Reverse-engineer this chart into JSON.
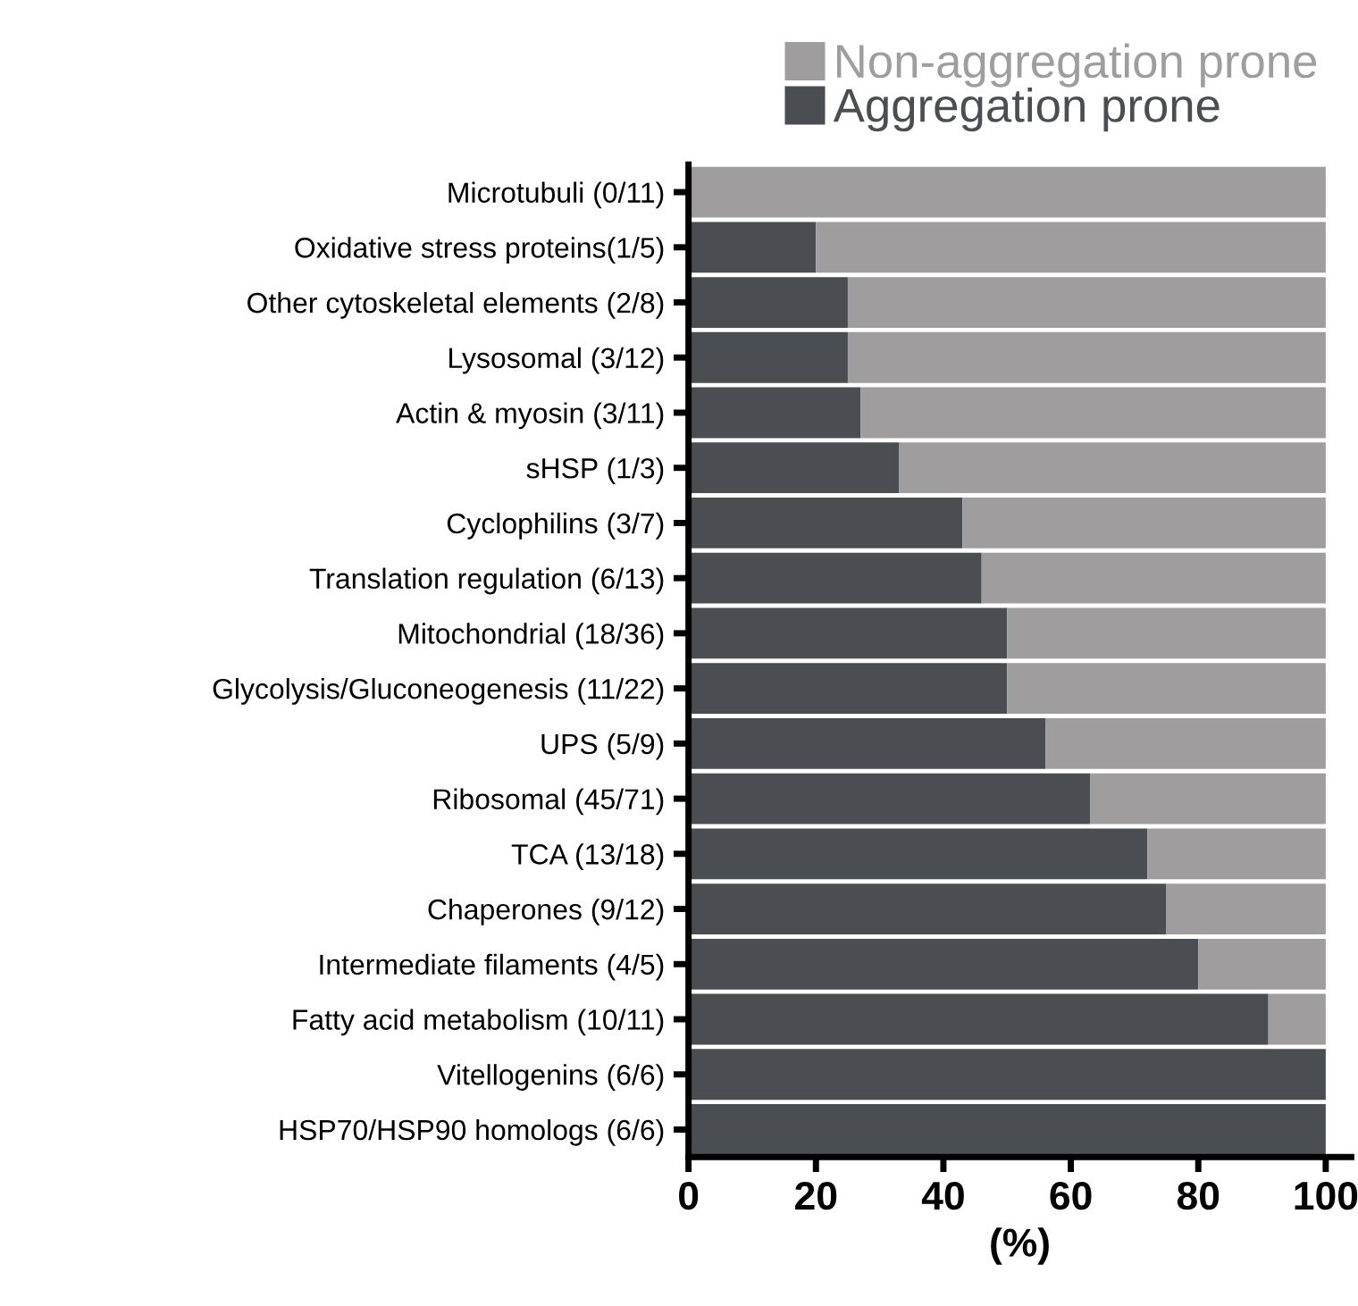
{
  "chart_data": {
    "type": "bar",
    "orientation": "horizontal",
    "stacked": true,
    "categories": [
      "Microtubuli (0/11)",
      "Oxidative stress proteins(1/5)",
      "Other cytoskeletal elements (2/8)",
      "Lysosomal (3/12)",
      "Actin & myosin (3/11)",
      "sHSP (1/3)",
      "Cyclophilins (3/7)",
      "Translation regulation (6/13)",
      "Mitochondrial (18/36)",
      "Glycolysis/Gluconeogenesis (11/22)",
      "UPS (5/9)",
      "Ribosomal (45/71)",
      "TCA (13/18)",
      "Chaperones (9/12)",
      "Intermediate filaments (4/5)",
      "Fatty acid metabolism (10/11)",
      "Vitellogenins (6/6)",
      "HSP70/HSP90 homologs (6/6)"
    ],
    "series": [
      {
        "name": "Aggregation prone",
        "color": "#4a4e53",
        "values": [
          0,
          20,
          25,
          25,
          27,
          33,
          43,
          46,
          50,
          50,
          56,
          63,
          72,
          75,
          80,
          91,
          100,
          100
        ]
      },
      {
        "name": "Non-aggregation prone",
        "color": "#a09d9e",
        "values": [
          100,
          80,
          75,
          75,
          73,
          67,
          57,
          54,
          50,
          50,
          44,
          37,
          28,
          25,
          20,
          9,
          0,
          0
        ]
      }
    ],
    "xlabel": "(%)",
    "xlim": [
      0,
      104
    ],
    "xticks": [
      0,
      20,
      40,
      60,
      80,
      100
    ],
    "grid": false,
    "legend": "top right"
  }
}
